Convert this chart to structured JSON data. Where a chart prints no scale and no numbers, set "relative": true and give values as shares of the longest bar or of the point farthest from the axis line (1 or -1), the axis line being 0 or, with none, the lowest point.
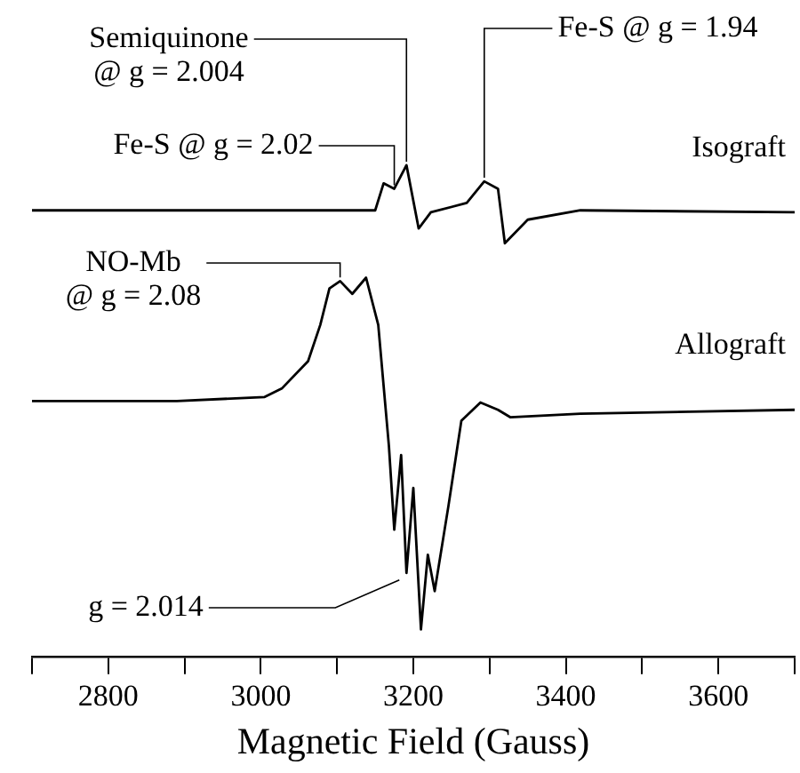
{
  "chart_data": {
    "type": "line",
    "relative": true,
    "xlabel": "Magnetic Field (Gauss)",
    "xlim": [
      2700,
      3700
    ],
    "xticks": [
      {
        "value": 2700,
        "label": null
      },
      2800,
      {
        "value": 2900,
        "label": null
      },
      3000,
      {
        "value": 3100,
        "label": null
      },
      3200,
      {
        "value": 3300,
        "label": null
      },
      3400,
      {
        "value": 3500,
        "label": null
      },
      3600,
      {
        "value": 3700,
        "label": null
      }
    ],
    "grid": false,
    "legend": false,
    "marker": "none",
    "line_style": "solid",
    "series": [
      {
        "name": "Isograft",
        "color": "#000000",
        "x": [
          2700,
          3150,
          3161,
          3175,
          3191,
          3207,
          3223,
          3270,
          3293,
          3311,
          3320,
          3350,
          3419,
          3700
        ],
        "values": [
          0.908,
          0.908,
          0.963,
          0.952,
          1,
          0.871,
          0.904,
          0.923,
          0.967,
          0.952,
          0.841,
          0.889,
          0.908,
          0.904
        ]
      },
      {
        "name": "Allograft",
        "color": "#000000",
        "x": [
          2700,
          2890,
          3005,
          3028,
          3062,
          3078,
          3090,
          3104,
          3120,
          3138,
          3154,
          3168,
          3175,
          3184,
          3191,
          3200,
          3210,
          3219,
          3228,
          3246,
          3263,
          3288,
          3311,
          3327,
          3419,
          3700
        ],
        "values": [
          0.52,
          0.52,
          0.528,
          0.546,
          0.601,
          0.675,
          0.749,
          0.764,
          0.738,
          0.771,
          0.675,
          0.428,
          0.258,
          0.41,
          0.17,
          0.343,
          0.055,
          0.207,
          0.133,
          0.306,
          0.48,
          0.517,
          0.502,
          0.487,
          0.494,
          0.502
        ]
      }
    ],
    "annotations": [
      {
        "text": "Semiquinone\n@ g = 2.004",
        "x": 3191,
        "y": 1
      },
      {
        "text": "Fe-S @ g = 2.02",
        "x": 3175,
        "y": 0.952
      },
      {
        "text": "Fe-S @ g = 1.94",
        "x": 3293,
        "y": 0.967
      },
      {
        "text": "NO-Mb\n@ g = 2.08",
        "x": 3104,
        "y": 0.764
      },
      {
        "text": "g = 2.014",
        "x": 3191,
        "y": 0.17
      }
    ]
  }
}
